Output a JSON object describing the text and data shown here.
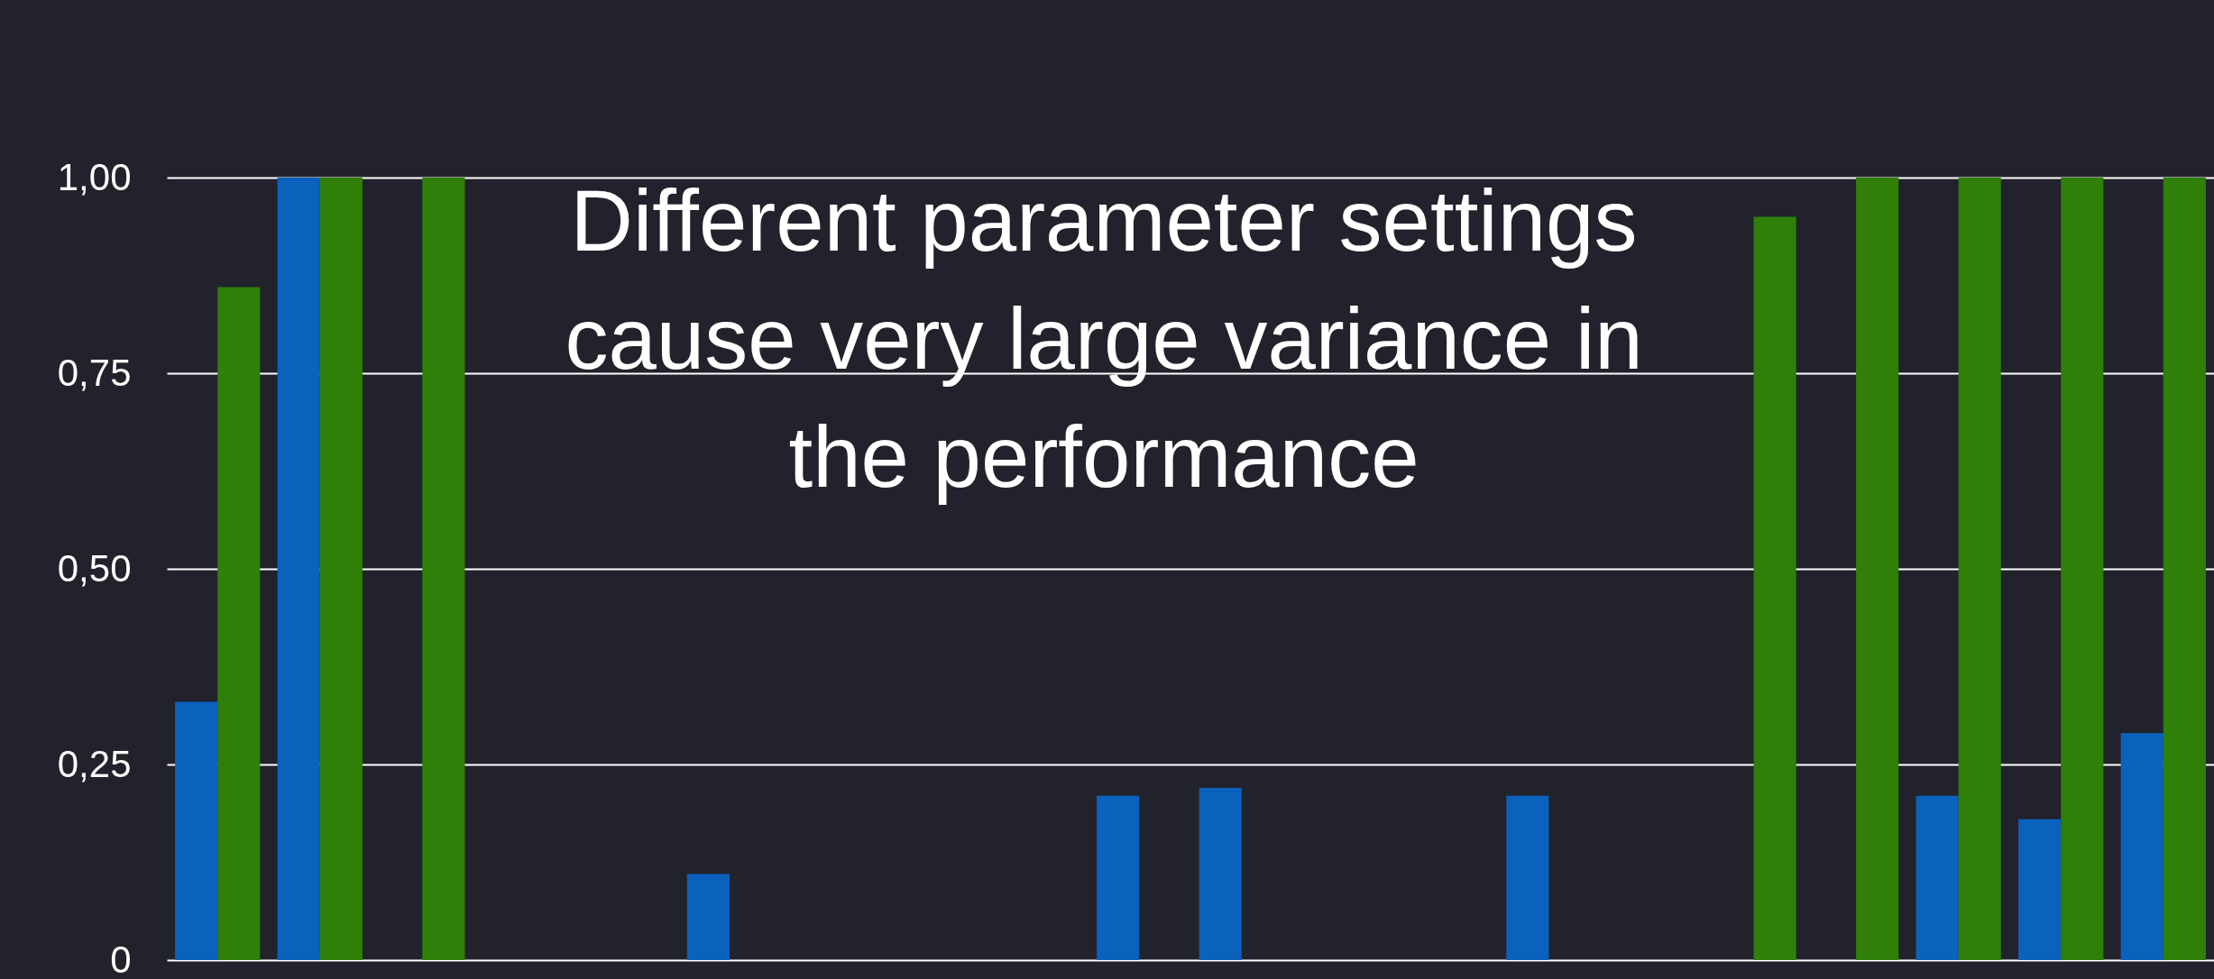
{
  "chart_data": {
    "type": "bar",
    "categories": [
      null,
      null,
      null,
      null,
      null,
      null,
      null,
      null,
      null,
      null,
      null,
      null,
      null,
      null,
      null,
      null,
      null,
      null,
      null,
      null
    ],
    "series": [
      {
        "color": "#0b62bd",
        "values": [
          0.33,
          1.0,
          null,
          null,
          null,
          0.11,
          null,
          null,
          null,
          0.21,
          0.22,
          null,
          null,
          0.21,
          null,
          null,
          null,
          0.21,
          0.18,
          0.29
        ]
      },
      {
        "color": "#2f7f08",
        "values": [
          0.86,
          1.0,
          1.0,
          null,
          null,
          null,
          null,
          null,
          null,
          null,
          null,
          null,
          null,
          null,
          null,
          0.95,
          1.0,
          1.0,
          1.0,
          1.0
        ]
      }
    ],
    "ylim": [
      0,
      1.0
    ],
    "yticks": [
      {
        "value": 0,
        "label": "0"
      },
      {
        "value": 0.25,
        "label": "0,25"
      },
      {
        "value": 0.5,
        "label": "0,50"
      },
      {
        "value": 0.75,
        "label": "0,75"
      },
      {
        "value": 1.0,
        "label": "1,00"
      }
    ],
    "grid": "y",
    "tick_labels": "y",
    "annotations": [
      "Different parameter settings\ncause very large variance in\nthe performance"
    ]
  }
}
